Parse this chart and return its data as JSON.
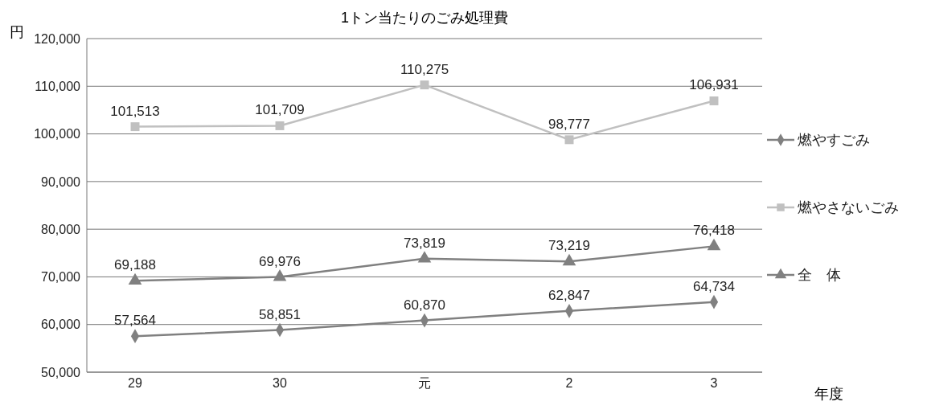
{
  "chart_data": {
    "type": "line",
    "title": "1トン当たりのごみ処理費",
    "xlabel": "年度",
    "ylabel": "円",
    "categories": [
      "29",
      "30",
      "元",
      "2",
      "3"
    ],
    "series": [
      {
        "name": "燃やすごみ",
        "color": "#808080",
        "marker": "diamond",
        "values": [
          57564,
          58851,
          60870,
          62847,
          64734
        ],
        "value_labels": [
          "57,564",
          "58,851",
          "60,870",
          "62,847",
          "64,734"
        ]
      },
      {
        "name": "燃やさないごみ",
        "color": "#c0c0c0",
        "marker": "square",
        "values": [
          101513,
          101709,
          110275,
          98777,
          106931
        ],
        "value_labels": [
          "101,513",
          "101,709",
          "110,275",
          "98,777",
          "106,931"
        ]
      },
      {
        "name": "全　体",
        "color": "#808080",
        "marker": "triangle",
        "values": [
          69188,
          69976,
          73819,
          73219,
          76418
        ],
        "value_labels": [
          "69,188",
          "69,976",
          "73,819",
          "73,219",
          "76,418"
        ]
      }
    ],
    "ylim": [
      50000,
      120000
    ],
    "yticks": [
      {
        "value": 50000,
        "label": "50,000"
      },
      {
        "value": 60000,
        "label": "60,000"
      },
      {
        "value": 70000,
        "label": "70,000"
      },
      {
        "value": 80000,
        "label": "80,000"
      },
      {
        "value": 90000,
        "label": "90,000"
      },
      {
        "value": 100000,
        "label": "100,000"
      },
      {
        "value": 110000,
        "label": "110,000"
      },
      {
        "value": 120000,
        "label": "120,000"
      }
    ],
    "grid": "y",
    "legend": "right"
  }
}
